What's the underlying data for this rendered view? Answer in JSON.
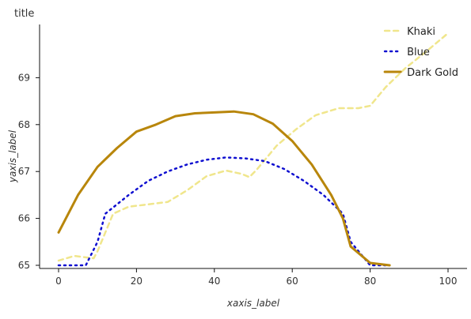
{
  "chart_data": {
    "type": "line",
    "title": "title",
    "xlabel": "xaxis_label",
    "ylabel": "yaxis_label",
    "xlim": [
      0,
      100
    ],
    "ylim": [
      65,
      70
    ],
    "x_ticks": [
      0,
      20,
      40,
      60,
      80,
      100
    ],
    "y_ticks": [
      65,
      66,
      67,
      68,
      69
    ],
    "grid": false,
    "legend_position": "top-right",
    "series": [
      {
        "name": "Khaki",
        "color": "#f0e68c",
        "dash": "dashed",
        "points": [
          {
            "x": 0,
            "y": 65.1
          },
          {
            "x": 4,
            "y": 65.2
          },
          {
            "x": 9,
            "y": 65.15
          },
          {
            "x": 10,
            "y": 65.3
          },
          {
            "x": 14,
            "y": 66.1
          },
          {
            "x": 18,
            "y": 66.25
          },
          {
            "x": 23,
            "y": 66.3
          },
          {
            "x": 28,
            "y": 66.35
          },
          {
            "x": 33,
            "y": 66.6
          },
          {
            "x": 38,
            "y": 66.9
          },
          {
            "x": 43,
            "y": 67.02
          },
          {
            "x": 47,
            "y": 66.95
          },
          {
            "x": 49,
            "y": 66.88
          },
          {
            "x": 51,
            "y": 67.05
          },
          {
            "x": 56,
            "y": 67.55
          },
          {
            "x": 61,
            "y": 67.9
          },
          {
            "x": 66,
            "y": 68.2
          },
          {
            "x": 72,
            "y": 68.35
          },
          {
            "x": 77,
            "y": 68.35
          },
          {
            "x": 80,
            "y": 68.4
          },
          {
            "x": 84,
            "y": 68.8
          },
          {
            "x": 89,
            "y": 69.2
          },
          {
            "x": 95,
            "y": 69.6
          },
          {
            "x": 100,
            "y": 69.95
          }
        ]
      },
      {
        "name": "Blue",
        "color": "#1010d0",
        "dash": "dotted",
        "points": [
          {
            "x": 0,
            "y": 65.0
          },
          {
            "x": 7,
            "y": 65.0
          },
          {
            "x": 10,
            "y": 65.5
          },
          {
            "x": 12,
            "y": 66.1
          },
          {
            "x": 18,
            "y": 66.5
          },
          {
            "x": 23,
            "y": 66.8
          },
          {
            "x": 28,
            "y": 67.0
          },
          {
            "x": 33,
            "y": 67.15
          },
          {
            "x": 38,
            "y": 67.25
          },
          {
            "x": 43,
            "y": 67.3
          },
          {
            "x": 48,
            "y": 67.28
          },
          {
            "x": 53,
            "y": 67.22
          },
          {
            "x": 58,
            "y": 67.05
          },
          {
            "x": 63,
            "y": 66.8
          },
          {
            "x": 68,
            "y": 66.5
          },
          {
            "x": 73,
            "y": 66.1
          },
          {
            "x": 75,
            "y": 65.5
          },
          {
            "x": 78,
            "y": 65.2
          },
          {
            "x": 80,
            "y": 65.0
          },
          {
            "x": 85,
            "y": 65.0
          }
        ]
      },
      {
        "name": "Dark Gold",
        "color": "#b8860b",
        "dash": "solid",
        "points": [
          {
            "x": 0,
            "y": 65.7
          },
          {
            "x": 5,
            "y": 66.5
          },
          {
            "x": 10,
            "y": 67.1
          },
          {
            "x": 15,
            "y": 67.5
          },
          {
            "x": 20,
            "y": 67.85
          },
          {
            "x": 25,
            "y": 68.0
          },
          {
            "x": 30,
            "y": 68.18
          },
          {
            "x": 35,
            "y": 68.24
          },
          {
            "x": 40,
            "y": 68.26
          },
          {
            "x": 45,
            "y": 68.28
          },
          {
            "x": 50,
            "y": 68.22
          },
          {
            "x": 55,
            "y": 68.02
          },
          {
            "x": 60,
            "y": 67.65
          },
          {
            "x": 65,
            "y": 67.15
          },
          {
            "x": 70,
            "y": 66.5
          },
          {
            "x": 73,
            "y": 66.0
          },
          {
            "x": 75,
            "y": 65.4
          },
          {
            "x": 80,
            "y": 65.05
          },
          {
            "x": 85,
            "y": 65.0
          }
        ]
      }
    ]
  }
}
